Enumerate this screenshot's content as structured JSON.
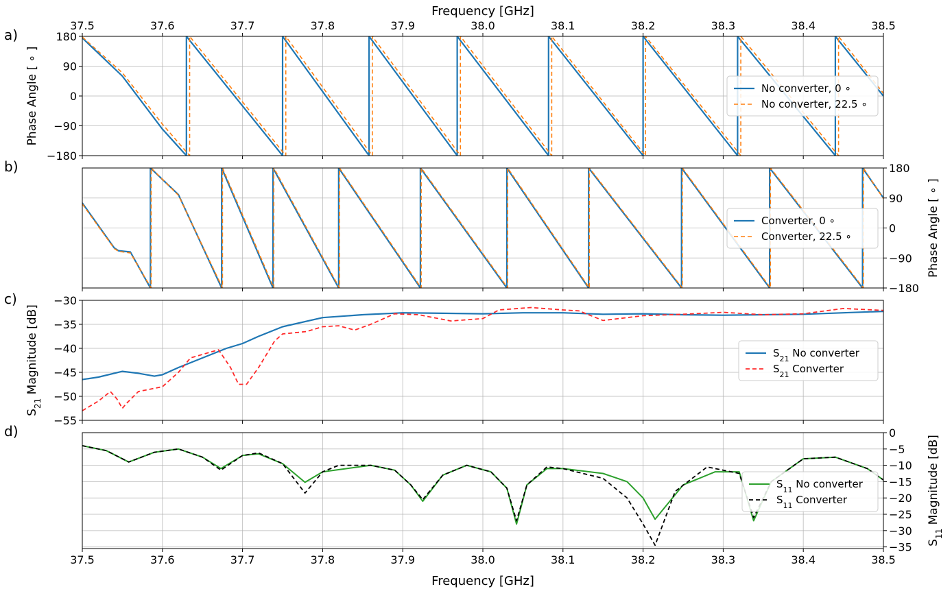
{
  "figure": {
    "top_xlabel": "Frequency [GHz]",
    "bottom_xlabel": "Frequency [GHz]"
  },
  "colors": {
    "blue": "#1f77b4",
    "orange": "#ff7f0e",
    "red": "#ff2a2a",
    "green": "#2ca02c",
    "black": "#000000",
    "grid": "#b0b0b0"
  },
  "chart_data": [
    {
      "panel_label": "a)",
      "type": "line",
      "ylabel": "Phase Angle [ ∘ ]",
      "xlim": [
        37.5,
        38.5
      ],
      "ylim": [
        -180,
        180
      ],
      "xticks": [
        37.5,
        37.6,
        37.7,
        37.8,
        37.9,
        38.0,
        38.1,
        38.2,
        38.3,
        38.4,
        38.5
      ],
      "xtick_labels": [
        "37.5",
        "37.6",
        "37.7",
        "37.8",
        "37.9",
        "38.0",
        "38.1",
        "38.2",
        "38.3",
        "38.4",
        "38.5"
      ],
      "yticks": [
        180,
        90,
        0,
        -90,
        -180
      ],
      "ytick_labels": [
        "180",
        "90",
        "0",
        "−90",
        "−180"
      ],
      "grid": true,
      "legend": "center-right",
      "series": [
        {
          "name": "No converter, 0 ∘",
          "style": "solid",
          "x": [
            37.5,
            37.55,
            37.6,
            37.63,
            37.63,
            37.75,
            37.75,
            37.858,
            37.858,
            37.968,
            37.968,
            38.082,
            38.082,
            38.2,
            38.2,
            38.318,
            38.318,
            38.44,
            38.44,
            38.5
          ],
          "y": [
            175,
            60,
            -100,
            -180,
            180,
            -180,
            180,
            -180,
            180,
            -180,
            180,
            -180,
            180,
            -180,
            180,
            -180,
            180,
            -180,
            180,
            0
          ]
        },
        {
          "name": "No converter, 22.5 ∘",
          "style": "dashed",
          "x": [
            37.5,
            37.55,
            37.6,
            37.634,
            37.634,
            37.754,
            37.754,
            37.862,
            37.862,
            37.972,
            37.972,
            38.086,
            38.086,
            38.203,
            38.203,
            38.322,
            38.322,
            38.444,
            38.444,
            38.5
          ],
          "y": [
            178,
            70,
            -85,
            -180,
            180,
            -180,
            180,
            -180,
            180,
            -180,
            180,
            -180,
            180,
            -180,
            180,
            -180,
            180,
            -180,
            180,
            8
          ]
        }
      ]
    },
    {
      "panel_label": "b)",
      "type": "line",
      "ylabel": "Phase Angle [ ∘ ]",
      "xlim": [
        37.5,
        38.5
      ],
      "ylim": [
        -180,
        180
      ],
      "xticks": [
        37.5,
        37.6,
        37.7,
        37.8,
        37.9,
        38.0,
        38.1,
        38.2,
        38.3,
        38.4,
        38.5
      ],
      "yticks": [
        180,
        90,
        0,
        -90,
        -180
      ],
      "ytick_labels": [
        "180",
        "90",
        "0",
        "−90",
        "−180"
      ],
      "grid": true,
      "legend": "center-right",
      "series": [
        {
          "name": "Converter, 0 ∘",
          "style": "solid",
          "x": [
            37.5,
            37.54,
            37.545,
            37.56,
            37.585,
            37.585,
            37.62,
            37.674,
            37.674,
            37.738,
            37.738,
            37.82,
            37.82,
            37.922,
            37.922,
            38.03,
            38.03,
            38.132,
            38.132,
            38.248,
            38.248,
            38.358,
            38.358,
            38.474,
            38.474,
            38.5
          ],
          "y": [
            75,
            -60,
            -68,
            -72,
            -180,
            180,
            100,
            -180,
            180,
            -180,
            180,
            -180,
            180,
            -180,
            180,
            -180,
            180,
            -180,
            180,
            -180,
            180,
            -180,
            180,
            -180,
            180,
            90
          ]
        },
        {
          "name": "Converter, 22.5 ∘",
          "style": "dashed",
          "x": [
            37.5,
            37.54,
            37.545,
            37.56,
            37.586,
            37.586,
            37.62,
            37.675,
            37.675,
            37.739,
            37.739,
            37.821,
            37.821,
            37.923,
            37.923,
            38.031,
            38.031,
            38.133,
            38.133,
            38.249,
            38.249,
            38.359,
            38.359,
            38.475,
            38.475,
            38.5
          ],
          "y": [
            72,
            -62,
            -70,
            -75,
            -180,
            180,
            98,
            -180,
            180,
            -180,
            180,
            -180,
            180,
            -180,
            180,
            -180,
            180,
            -180,
            180,
            -180,
            180,
            -180,
            180,
            -180,
            180,
            88
          ]
        }
      ]
    },
    {
      "panel_label": "c)",
      "type": "line",
      "ylabel": "S",
      "ylabel_sub": "21",
      "ylabel_rest": " Magnitude [dB]",
      "xlim": [
        37.5,
        38.5
      ],
      "ylim": [
        -55,
        -30
      ],
      "xticks": [
        37.5,
        37.6,
        37.7,
        37.8,
        37.9,
        38.0,
        38.1,
        38.2,
        38.3,
        38.4,
        38.5
      ],
      "yticks": [
        -30,
        -35,
        -40,
        -45,
        -50,
        -55
      ],
      "ytick_labels": [
        "−30",
        "−35",
        "−40",
        "−45",
        "−50",
        "−55"
      ],
      "grid": true,
      "legend": "center-right",
      "series": [
        {
          "name_main": "S",
          "name_sub": "21",
          "name_rest": "  No converter",
          "style": "solid",
          "x": [
            37.5,
            37.52,
            37.55,
            37.57,
            37.59,
            37.6,
            37.62,
            37.65,
            37.68,
            37.7,
            37.72,
            37.75,
            37.8,
            37.85,
            37.9,
            37.95,
            38.0,
            38.05,
            38.1,
            38.15,
            38.2,
            38.25,
            38.3,
            38.35,
            38.4,
            38.45,
            38.5
          ],
          "y": [
            -46.5,
            -46,
            -44.8,
            -45.2,
            -45.8,
            -45.5,
            -44,
            -42,
            -40,
            -39,
            -37.5,
            -35.5,
            -33.6,
            -33.0,
            -32.6,
            -32.7,
            -32.8,
            -32.6,
            -32.6,
            -32.9,
            -32.8,
            -33.0,
            -33.1,
            -33.0,
            -32.9,
            -32.6,
            -32.3
          ]
        },
        {
          "name_main": "S",
          "name_sub": "21",
          "name_rest": "  Converter",
          "style": "dashed",
          "x": [
            37.5,
            37.52,
            37.535,
            37.543,
            37.55,
            37.555,
            37.57,
            37.6,
            37.62,
            37.635,
            37.67,
            37.685,
            37.695,
            37.705,
            37.72,
            37.74,
            37.75,
            37.78,
            37.8,
            37.82,
            37.84,
            37.86,
            37.89,
            37.92,
            37.96,
            38.0,
            38.02,
            38.06,
            38.1,
            38.12,
            38.15,
            38.2,
            38.25,
            38.3,
            38.35,
            38.4,
            38.45,
            38.5
          ],
          "y": [
            -53,
            -51,
            -49,
            -50.5,
            -52.5,
            -51.5,
            -49,
            -48,
            -45,
            -42,
            -40.3,
            -44,
            -47.5,
            -47.5,
            -44,
            -38.5,
            -37,
            -36.5,
            -35.5,
            -35.3,
            -36.2,
            -35,
            -32.8,
            -33,
            -34.3,
            -33.8,
            -32,
            -31.5,
            -32,
            -32.2,
            -34.2,
            -33.2,
            -32.9,
            -32.5,
            -33.0,
            -32.8,
            -31.7,
            -32.1
          ]
        }
      ]
    },
    {
      "panel_label": "d)",
      "type": "line",
      "ylabel": "S",
      "ylabel_sub": "11",
      "ylabel_rest": " Magnitude [dB]",
      "xlim": [
        37.5,
        38.5
      ],
      "ylim": [
        -35.5,
        0
      ],
      "xticks": [
        37.5,
        37.6,
        37.7,
        37.8,
        37.9,
        38.0,
        38.1,
        38.2,
        38.3,
        38.4,
        38.5
      ],
      "xtick_labels": [
        "37.5",
        "37.6",
        "37.7",
        "37.8",
        "37.9",
        "38.0",
        "38.1",
        "38.2",
        "38.3",
        "38.4",
        "38.5"
      ],
      "yticks": [
        0,
        -5,
        -10,
        -15,
        -20,
        -25,
        -30,
        -35
      ],
      "ytick_labels": [
        "0",
        "−5",
        "−10",
        "−15",
        "−20",
        "−25",
        "−30",
        "−35"
      ],
      "grid": true,
      "legend": "center-right",
      "series": [
        {
          "name_main": "S",
          "name_sub": "11",
          "name_rest": " No converter",
          "style": "solid",
          "x": [
            37.5,
            37.53,
            37.558,
            37.59,
            37.62,
            37.65,
            37.673,
            37.7,
            37.72,
            37.75,
            37.778,
            37.8,
            37.83,
            37.86,
            37.89,
            37.91,
            37.925,
            37.95,
            37.98,
            38.01,
            38.03,
            38.042,
            38.055,
            38.08,
            38.1,
            38.15,
            38.18,
            38.2,
            38.215,
            38.25,
            38.29,
            38.32,
            38.338,
            38.36,
            38.4,
            38.44,
            38.48,
            38.5
          ],
          "y": [
            -4,
            -5.5,
            -9,
            -6,
            -5,
            -7.5,
            -11,
            -7,
            -6.5,
            -9.5,
            -15.2,
            -12,
            -11,
            -10,
            -11.5,
            -16,
            -21,
            -13,
            -10,
            -12,
            -17,
            -28,
            -16,
            -11,
            -11,
            -12.5,
            -15,
            -20,
            -26.5,
            -16,
            -12,
            -12,
            -27,
            -15,
            -8,
            -7.5,
            -11,
            -14.5
          ]
        },
        {
          "name_main": "S",
          "name_sub": "11",
          "name_rest": " Converter",
          "style": "dashed",
          "x": [
            37.5,
            37.53,
            37.558,
            37.59,
            37.62,
            37.65,
            37.673,
            37.7,
            37.72,
            37.75,
            37.778,
            37.8,
            37.82,
            37.86,
            37.89,
            37.91,
            37.925,
            37.95,
            37.98,
            38.01,
            38.03,
            38.042,
            38.055,
            38.08,
            38.1,
            38.15,
            38.18,
            38.2,
            38.215,
            38.24,
            38.28,
            38.32,
            38.338,
            38.36,
            38.4,
            38.44,
            38.48,
            38.5
          ],
          "y": [
            -4,
            -5.5,
            -9,
            -6,
            -5,
            -7.5,
            -11.5,
            -7,
            -6.2,
            -9.5,
            -18.5,
            -12,
            -10,
            -10,
            -11.5,
            -16,
            -20.5,
            -13,
            -10,
            -12,
            -17,
            -27,
            -16,
            -10.5,
            -11,
            -14,
            -20,
            -28,
            -34.5,
            -18,
            -10.5,
            -12.5,
            -26,
            -15,
            -8,
            -7.5,
            -11,
            -14.5
          ]
        }
      ]
    }
  ]
}
